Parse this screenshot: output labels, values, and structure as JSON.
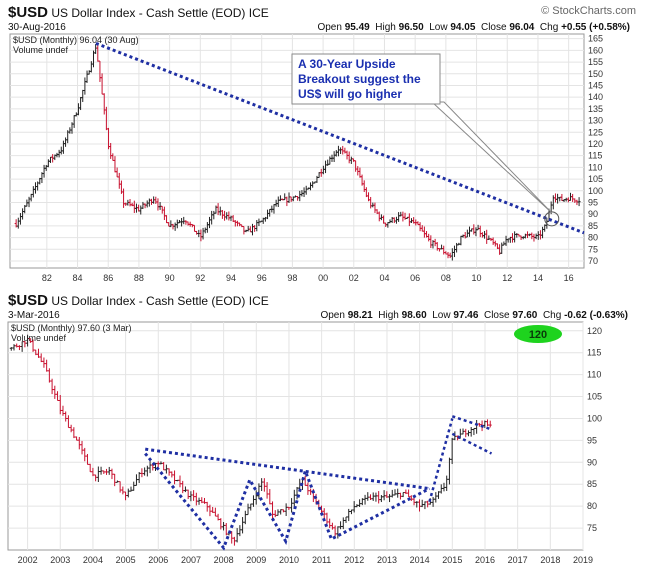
{
  "brand": "© StockCharts.com",
  "chart_data": [
    {
      "type": "ohlc",
      "ticker": "$USD",
      "title": "US Dollar Index - Cash Settle (EOD)",
      "exchange": "ICE",
      "date": "30-Aug-2016",
      "legend_price": "$USD (Monthly) 96.04 (30 Aug)",
      "legend_volume": "Volume undef",
      "ohlc": {
        "open_label": "Open",
        "open": "95.49",
        "high_label": "High",
        "high": "96.50",
        "low_label": "Low",
        "low": "94.05",
        "close_label": "Close",
        "close": "96.04",
        "chg_label": "Chg",
        "chg": "+0.55 (+0.58%)"
      },
      "x_ticks": [
        "82",
        "84",
        "86",
        "88",
        "90",
        "92",
        "94",
        "96",
        "98",
        "00",
        "02",
        "04",
        "06",
        "08",
        "10",
        "12",
        "14",
        "16"
      ],
      "x_ticks_years": [
        1982,
        1984,
        1986,
        1988,
        1990,
        1992,
        1994,
        1996,
        1998,
        2000,
        2002,
        2004,
        2006,
        2008,
        2010,
        2012,
        2014,
        2016
      ],
      "xlim": [
        1979.6,
        2017.0
      ],
      "y_ticks": [
        70,
        75,
        80,
        85,
        90,
        95,
        100,
        105,
        110,
        115,
        120,
        125,
        130,
        135,
        140,
        145,
        150,
        155,
        160,
        165
      ],
      "ylim": [
        67,
        167
      ],
      "series": [
        {
          "x": [
            1980.0,
            1981.0,
            1982.0,
            1983.0,
            1984.0,
            1985.2,
            1986.0,
            1987.0,
            1988.0,
            1989.0,
            1990.0,
            1991.0,
            1992.0,
            1993.0,
            1994.0,
            1995.0,
            1996.0,
            1997.0,
            1998.0,
            1999.0,
            2000.0,
            2001.0,
            2002.0,
            2003.0,
            2004.0,
            2005.0,
            2006.0,
            2007.0,
            2008.3,
            2009.0,
            2010.0,
            2011.0,
            2011.5,
            2012.0,
            2013.0,
            2014.0,
            2014.5,
            2015.0,
            2015.5,
            2016.0,
            2016.7
          ],
          "y": [
            86,
            98,
            112,
            118,
            135,
            162,
            120,
            95,
            92,
            97,
            85,
            88,
            80,
            92,
            88,
            82,
            87,
            95,
            97,
            100,
            110,
            118,
            112,
            95,
            86,
            89,
            86,
            78,
            72,
            80,
            84,
            78,
            74,
            80,
            81,
            80,
            85,
            98,
            96,
            97,
            96
          ]
        }
      ],
      "annotations": {
        "callout": [
          "A 30-Year Upside",
          "Breakout suggest the",
          "US$ will go higher"
        ],
        "trendline": {
          "from": [
            1985.2,
            163
          ],
          "to": [
            2017.0,
            82
          ]
        }
      }
    },
    {
      "type": "ohlc",
      "ticker": "$USD",
      "title": "US Dollar Index - Cash Settle (EOD)",
      "exchange": "ICE",
      "date": "3-Mar-2016",
      "legend_price": "$USD (Monthly) 97.60 (3 Mar)",
      "legend_volume": "Volume undef",
      "ohlc": {
        "open_label": "Open",
        "open": "98.21",
        "high_label": "High",
        "high": "98.60",
        "low_label": "Low",
        "low": "97.46",
        "close_label": "Close",
        "close": "97.60",
        "chg_label": "Chg",
        "chg": "-0.62 (-0.63%)"
      },
      "x_ticks": [
        "2002",
        "2003",
        "2004",
        "2005",
        "2006",
        "2007",
        "2008",
        "2009",
        "2010",
        "2011",
        "2012",
        "2013",
        "2014",
        "2015",
        "2016",
        "2017",
        "2018",
        "2019"
      ],
      "x_ticks_years": [
        2002,
        2003,
        2004,
        2005,
        2006,
        2007,
        2008,
        2009,
        2010,
        2011,
        2012,
        2013,
        2014,
        2015,
        2016,
        2017,
        2018,
        2019
      ],
      "xlim": [
        2001.4,
        2019.0
      ],
      "y_ticks": [
        75,
        80,
        85,
        90,
        95,
        100,
        105,
        110,
        115,
        120
      ],
      "ylim": [
        70,
        122
      ],
      "series": [
        {
          "x": [
            2001.5,
            2002.0,
            2002.5,
            2003.0,
            2003.5,
            2004.0,
            2004.5,
            2005.0,
            2005.5,
            2006.0,
            2006.5,
            2007.0,
            2007.5,
            2008.3,
            2008.8,
            2009.2,
            2009.5,
            2010.0,
            2010.4,
            2010.9,
            2011.4,
            2012.0,
            2012.5,
            2013.0,
            2013.5,
            2014.0,
            2014.4,
            2014.8,
            2015.0,
            2015.4,
            2015.9,
            2016.2
          ],
          "y": [
            116,
            118,
            112,
            102,
            95,
            87,
            88,
            82,
            88,
            90,
            86,
            82,
            80,
            72,
            80,
            86,
            78,
            80,
            86,
            80,
            74,
            80,
            82,
            82,
            83,
            80,
            81,
            85,
            95,
            97,
            99,
            98
          ]
        }
      ],
      "annotations": {
        "target_badge": "120",
        "trendline": {
          "from": [
            2005.6,
            93
          ],
          "to": [
            2014.3,
            84
          ]
        },
        "zigzag": [
          [
            2005.6,
            92
          ],
          [
            2008.0,
            70.5
          ],
          [
            2008.8,
            86
          ],
          [
            2009.9,
            72
          ],
          [
            2010.5,
            88
          ],
          [
            2011.3,
            72.5
          ],
          [
            2014.3,
            84
          ]
        ],
        "wedge": [
          [
            2015.0,
            100.5
          ],
          [
            2016.2,
            97.5
          ],
          [
            2015.0,
            96.5
          ],
          [
            2016.2,
            92
          ]
        ]
      }
    }
  ]
}
